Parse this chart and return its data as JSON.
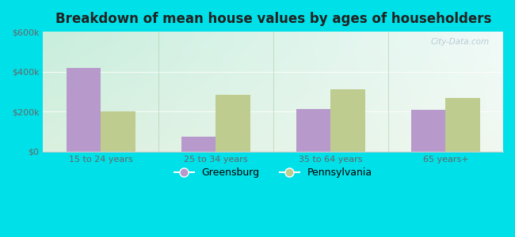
{
  "title": "Breakdown of mean house values by ages of householders",
  "categories": [
    "15 to 24 years",
    "25 to 34 years",
    "35 to 64 years",
    "65 years+"
  ],
  "greensburg_values": [
    420000,
    75000,
    215000,
    210000
  ],
  "pennsylvania_values": [
    200000,
    285000,
    310000,
    270000
  ],
  "ylim": [
    0,
    600000
  ],
  "yticks": [
    0,
    200000,
    400000,
    600000
  ],
  "ytick_labels": [
    "$0",
    "$200k",
    "$400k",
    "$600k"
  ],
  "greensburg_color": "#b899cc",
  "pennsylvania_color": "#bfcc8f",
  "bg_color_topleft": "#c8eedd",
  "bg_color_topright": "#f0faf8",
  "bg_color_bottom": "#e8f5e0",
  "outer_bg": "#00e0e8",
  "bar_width": 0.3,
  "legend_greensburg": "Greensburg",
  "legend_pennsylvania": "Pennsylvania",
  "watermark": "City-Data.com",
  "title_fontsize": 12,
  "tick_fontsize": 8,
  "legend_fontsize": 9
}
